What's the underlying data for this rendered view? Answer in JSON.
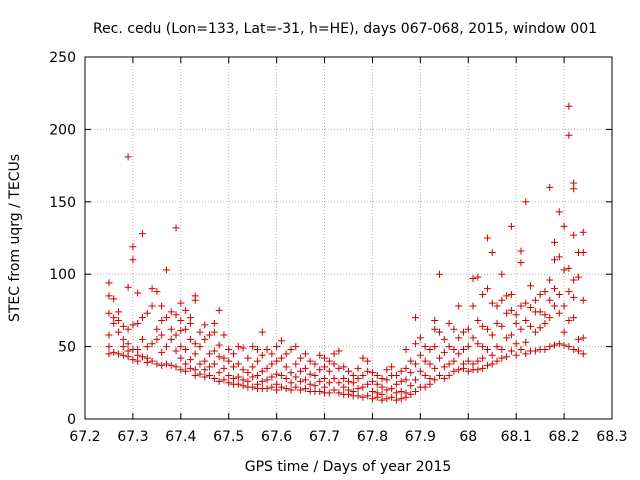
{
  "chart_data": {
    "type": "scatter",
    "title": "Rec. cedu (Lon=133, Lat=-31, h=HE), days 067-068, 2015, window 001",
    "xlabel": "GPS time / Days of year 2015",
    "ylabel": "STEC from uqrg / TECUs",
    "xlim": [
      67.2,
      68.3
    ],
    "ylim": [
      0,
      250
    ],
    "xticks": [
      "67.2",
      "67.3",
      "67.4",
      "67.5",
      "67.6",
      "67.7",
      "67.8",
      "67.9",
      "68",
      "68.1",
      "68.2",
      "68.3"
    ],
    "yticks": [
      "0",
      "50",
      "100",
      "150",
      "200",
      "250"
    ],
    "grid": true,
    "marker": "+",
    "color": "#cc0000",
    "points": [
      [
        67.25,
        94
      ],
      [
        67.25,
        85
      ],
      [
        67.25,
        73
      ],
      [
        67.25,
        58
      ],
      [
        67.25,
        50
      ],
      [
        67.25,
        45
      ],
      [
        67.26,
        83
      ],
      [
        67.26,
        70
      ],
      [
        67.26,
        66
      ],
      [
        67.26,
        46
      ],
      [
        67.27,
        74
      ],
      [
        67.27,
        68
      ],
      [
        67.27,
        60
      ],
      [
        67.27,
        45
      ],
      [
        67.28,
        64
      ],
      [
        67.28,
        55
      ],
      [
        67.28,
        50
      ],
      [
        67.28,
        44
      ],
      [
        67.29,
        181
      ],
      [
        67.29,
        91
      ],
      [
        67.29,
        62
      ],
      [
        67.29,
        52
      ],
      [
        67.29,
        47
      ],
      [
        67.29,
        43
      ],
      [
        67.3,
        119
      ],
      [
        67.3,
        110
      ],
      [
        67.3,
        65
      ],
      [
        67.3,
        48
      ],
      [
        67.3,
        41
      ],
      [
        67.31,
        87
      ],
      [
        67.31,
        66
      ],
      [
        67.31,
        48
      ],
      [
        67.31,
        44
      ],
      [
        67.31,
        40
      ],
      [
        67.32,
        128
      ],
      [
        67.32,
        70
      ],
      [
        67.32,
        55
      ],
      [
        67.32,
        43
      ],
      [
        67.33,
        73
      ],
      [
        67.33,
        50
      ],
      [
        67.33,
        42
      ],
      [
        67.33,
        39
      ],
      [
        67.34,
        90
      ],
      [
        67.34,
        78
      ],
      [
        67.34,
        52
      ],
      [
        67.34,
        40
      ],
      [
        67.35,
        88
      ],
      [
        67.35,
        62
      ],
      [
        67.35,
        55
      ],
      [
        67.35,
        38
      ],
      [
        67.36,
        78
      ],
      [
        67.36,
        68
      ],
      [
        67.36,
        58
      ],
      [
        67.36,
        46
      ],
      [
        67.36,
        37
      ],
      [
        67.37,
        103
      ],
      [
        67.37,
        70
      ],
      [
        67.37,
        50
      ],
      [
        67.37,
        38
      ],
      [
        67.38,
        74
      ],
      [
        67.38,
        62
      ],
      [
        67.38,
        55
      ],
      [
        67.38,
        37
      ],
      [
        67.39,
        132
      ],
      [
        67.39,
        72
      ],
      [
        67.39,
        58
      ],
      [
        67.39,
        47
      ],
      [
        67.39,
        36
      ],
      [
        67.4,
        80
      ],
      [
        67.4,
        68
      ],
      [
        67.4,
        61
      ],
      [
        67.4,
        50
      ],
      [
        67.4,
        42
      ],
      [
        67.4,
        34
      ],
      [
        67.41,
        75
      ],
      [
        67.41,
        62
      ],
      [
        67.41,
        48
      ],
      [
        67.41,
        38
      ],
      [
        67.41,
        33
      ],
      [
        67.42,
        70
      ],
      [
        67.42,
        66
      ],
      [
        67.42,
        55
      ],
      [
        67.42,
        41
      ],
      [
        67.42,
        35
      ],
      [
        67.43,
        85
      ],
      [
        67.43,
        82
      ],
      [
        67.43,
        52
      ],
      [
        67.43,
        45
      ],
      [
        67.43,
        34
      ],
      [
        67.43,
        30
      ],
      [
        67.44,
        60
      ],
      [
        67.44,
        50
      ],
      [
        67.44,
        38
      ],
      [
        67.44,
        31
      ],
      [
        67.45,
        65
      ],
      [
        67.45,
        55
      ],
      [
        67.45,
        40
      ],
      [
        67.45,
        34
      ],
      [
        67.45,
        29
      ],
      [
        67.46,
        58
      ],
      [
        67.46,
        45
      ],
      [
        67.46,
        36
      ],
      [
        67.46,
        30
      ],
      [
        67.47,
        66
      ],
      [
        67.47,
        60
      ],
      [
        67.47,
        47
      ],
      [
        67.47,
        38
      ],
      [
        67.47,
        28
      ],
      [
        67.48,
        75
      ],
      [
        67.48,
        51
      ],
      [
        67.48,
        43
      ],
      [
        67.48,
        32
      ],
      [
        67.48,
        26
      ],
      [
        67.49,
        58
      ],
      [
        67.49,
        42
      ],
      [
        67.49,
        35
      ],
      [
        67.49,
        27
      ],
      [
        67.5,
        48
      ],
      [
        67.5,
        40
      ],
      [
        67.5,
        30
      ],
      [
        67.5,
        25
      ],
      [
        67.51,
        45
      ],
      [
        67.51,
        36
      ],
      [
        67.51,
        28
      ],
      [
        67.51,
        24
      ],
      [
        67.52,
        50
      ],
      [
        67.52,
        38
      ],
      [
        67.52,
        29
      ],
      [
        67.52,
        24
      ],
      [
        67.53,
        49
      ],
      [
        67.53,
        34
      ],
      [
        67.53,
        27
      ],
      [
        67.53,
        23
      ],
      [
        67.54,
        42
      ],
      [
        67.54,
        32
      ],
      [
        67.54,
        26
      ],
      [
        67.54,
        22
      ],
      [
        67.55,
        50
      ],
      [
        67.55,
        36
      ],
      [
        67.55,
        29
      ],
      [
        67.55,
        22
      ],
      [
        67.56,
        48
      ],
      [
        67.56,
        40
      ],
      [
        67.56,
        30
      ],
      [
        67.56,
        24
      ],
      [
        67.56,
        21
      ],
      [
        67.57,
        60
      ],
      [
        67.57,
        44
      ],
      [
        67.57,
        33
      ],
      [
        67.57,
        26
      ],
      [
        67.57,
        21
      ],
      [
        67.58,
        48
      ],
      [
        67.58,
        35
      ],
      [
        67.58,
        27
      ],
      [
        67.58,
        21
      ],
      [
        67.59,
        45
      ],
      [
        67.59,
        38
      ],
      [
        67.59,
        29
      ],
      [
        67.59,
        22
      ],
      [
        67.6,
        50
      ],
      [
        67.6,
        40
      ],
      [
        67.6,
        31
      ],
      [
        67.6,
        24
      ],
      [
        67.6,
        20
      ],
      [
        67.61,
        54
      ],
      [
        67.61,
        42
      ],
      [
        67.61,
        30
      ],
      [
        67.61,
        22
      ],
      [
        67.62,
        45
      ],
      [
        67.62,
        36
      ],
      [
        67.62,
        28
      ],
      [
        67.62,
        21
      ],
      [
        67.63,
        48
      ],
      [
        67.63,
        32
      ],
      [
        67.63,
        25
      ],
      [
        67.63,
        20
      ],
      [
        67.64,
        50
      ],
      [
        67.64,
        38
      ],
      [
        67.64,
        29
      ],
      [
        67.64,
        22
      ],
      [
        67.65,
        42
      ],
      [
        67.65,
        33
      ],
      [
        67.65,
        26
      ],
      [
        67.65,
        20
      ],
      [
        67.66,
        45
      ],
      [
        67.66,
        35
      ],
      [
        67.66,
        27
      ],
      [
        67.66,
        21
      ],
      [
        67.67,
        40
      ],
      [
        67.67,
        31
      ],
      [
        67.67,
        24
      ],
      [
        67.67,
        19
      ],
      [
        67.68,
        38
      ],
      [
        67.68,
        30
      ],
      [
        67.68,
        23
      ],
      [
        67.68,
        19
      ],
      [
        67.69,
        44
      ],
      [
        67.69,
        34
      ],
      [
        67.69,
        26
      ],
      [
        67.69,
        19
      ],
      [
        67.7,
        42
      ],
      [
        67.7,
        36
      ],
      [
        67.7,
        28
      ],
      [
        67.7,
        22
      ],
      [
        67.7,
        18
      ],
      [
        67.71,
        40
      ],
      [
        67.71,
        33
      ],
      [
        67.71,
        25
      ],
      [
        67.71,
        18
      ],
      [
        67.72,
        45
      ],
      [
        67.72,
        38
      ],
      [
        67.72,
        28
      ],
      [
        67.72,
        20
      ],
      [
        67.73,
        47
      ],
      [
        67.73,
        35
      ],
      [
        67.73,
        25
      ],
      [
        67.73,
        18
      ],
      [
        67.74,
        36
      ],
      [
        67.74,
        28
      ],
      [
        67.74,
        22
      ],
      [
        67.74,
        17
      ],
      [
        67.75,
        33
      ],
      [
        67.75,
        26
      ],
      [
        67.75,
        20
      ],
      [
        67.75,
        17
      ],
      [
        67.76,
        30
      ],
      [
        67.76,
        25
      ],
      [
        67.76,
        19
      ],
      [
        67.76,
        16
      ],
      [
        67.77,
        35
      ],
      [
        67.77,
        28
      ],
      [
        67.77,
        21
      ],
      [
        67.77,
        16
      ],
      [
        67.78,
        42
      ],
      [
        67.78,
        30
      ],
      [
        67.78,
        22
      ],
      [
        67.78,
        15
      ],
      [
        67.79,
        40
      ],
      [
        67.79,
        33
      ],
      [
        67.79,
        24
      ],
      [
        67.79,
        16
      ],
      [
        67.8,
        32
      ],
      [
        67.8,
        26
      ],
      [
        67.8,
        19
      ],
      [
        67.8,
        14
      ],
      [
        67.81,
        30
      ],
      [
        67.81,
        24
      ],
      [
        67.81,
        18
      ],
      [
        67.81,
        15
      ],
      [
        67.82,
        28
      ],
      [
        67.82,
        22
      ],
      [
        67.82,
        17
      ],
      [
        67.82,
        13
      ],
      [
        67.83,
        34
      ],
      [
        67.83,
        27
      ],
      [
        67.83,
        20
      ],
      [
        67.83,
        14
      ],
      [
        67.84,
        36
      ],
      [
        67.84,
        30
      ],
      [
        67.84,
        21
      ],
      [
        67.84,
        15
      ],
      [
        67.85,
        30
      ],
      [
        67.85,
        24
      ],
      [
        67.85,
        18
      ],
      [
        67.85,
        13
      ],
      [
        67.86,
        33
      ],
      [
        67.86,
        26
      ],
      [
        67.86,
        19
      ],
      [
        67.86,
        14
      ],
      [
        67.87,
        48
      ],
      [
        67.87,
        35
      ],
      [
        67.87,
        27
      ],
      [
        67.87,
        18
      ],
      [
        67.87,
        15
      ],
      [
        67.88,
        40
      ],
      [
        67.88,
        32
      ],
      [
        67.88,
        23
      ],
      [
        67.88,
        17
      ],
      [
        67.89,
        70
      ],
      [
        67.89,
        52
      ],
      [
        67.89,
        38
      ],
      [
        67.89,
        27
      ],
      [
        67.89,
        19
      ],
      [
        67.9,
        56
      ],
      [
        67.9,
        44
      ],
      [
        67.9,
        33
      ],
      [
        67.9,
        22
      ],
      [
        67.91,
        50
      ],
      [
        67.91,
        40
      ],
      [
        67.91,
        30
      ],
      [
        67.91,
        22
      ],
      [
        67.92,
        48
      ],
      [
        67.92,
        38
      ],
      [
        67.92,
        28
      ],
      [
        67.92,
        24
      ],
      [
        67.93,
        68
      ],
      [
        67.93,
        62
      ],
      [
        67.93,
        50
      ],
      [
        67.93,
        35
      ],
      [
        67.93,
        27
      ],
      [
        67.94,
        100
      ],
      [
        67.94,
        60
      ],
      [
        67.94,
        42
      ],
      [
        67.94,
        30
      ],
      [
        67.95,
        55
      ],
      [
        67.95,
        46
      ],
      [
        67.95,
        36
      ],
      [
        67.95,
        28
      ],
      [
        67.96,
        66
      ],
      [
        67.96,
        50
      ],
      [
        67.96,
        38
      ],
      [
        67.96,
        30
      ],
      [
        67.97,
        62
      ],
      [
        67.97,
        48
      ],
      [
        67.97,
        40
      ],
      [
        67.97,
        33
      ],
      [
        67.98,
        78
      ],
      [
        67.98,
        56
      ],
      [
        67.98,
        45
      ],
      [
        67.98,
        34
      ],
      [
        67.99,
        60
      ],
      [
        67.99,
        48
      ],
      [
        67.99,
        38
      ],
      [
        67.99,
        35
      ],
      [
        68.0,
        62
      ],
      [
        68.0,
        50
      ],
      [
        68.0,
        40
      ],
      [
        68.0,
        33
      ],
      [
        68.01,
        97
      ],
      [
        68.01,
        78
      ],
      [
        68.01,
        56
      ],
      [
        68.01,
        38
      ],
      [
        68.01,
        34
      ],
      [
        68.02,
        98
      ],
      [
        68.02,
        68
      ],
      [
        68.02,
        52
      ],
      [
        68.02,
        40
      ],
      [
        68.02,
        34
      ],
      [
        68.03,
        86
      ],
      [
        68.03,
        64
      ],
      [
        68.03,
        50
      ],
      [
        68.03,
        42
      ],
      [
        68.03,
        35
      ],
      [
        68.04,
        125
      ],
      [
        68.04,
        90
      ],
      [
        68.04,
        62
      ],
      [
        68.04,
        48
      ],
      [
        68.04,
        37
      ],
      [
        68.05,
        115
      ],
      [
        68.05,
        80
      ],
      [
        68.05,
        58
      ],
      [
        68.05,
        44
      ],
      [
        68.05,
        38
      ],
      [
        68.06,
        78
      ],
      [
        68.06,
        66
      ],
      [
        68.06,
        50
      ],
      [
        68.06,
        40
      ],
      [
        68.07,
        100
      ],
      [
        68.07,
        82
      ],
      [
        68.07,
        64
      ],
      [
        68.07,
        48
      ],
      [
        68.07,
        42
      ],
      [
        68.08,
        85
      ],
      [
        68.08,
        73
      ],
      [
        68.08,
        56
      ],
      [
        68.08,
        43
      ],
      [
        68.09,
        133
      ],
      [
        68.09,
        86
      ],
      [
        68.09,
        75
      ],
      [
        68.09,
        58
      ],
      [
        68.09,
        47
      ],
      [
        68.1,
        72
      ],
      [
        68.1,
        66
      ],
      [
        68.1,
        52
      ],
      [
        68.1,
        44
      ],
      [
        68.11,
        116
      ],
      [
        68.11,
        108
      ],
      [
        68.11,
        78
      ],
      [
        68.11,
        62
      ],
      [
        68.11,
        48
      ],
      [
        68.12,
        150
      ],
      [
        68.12,
        80
      ],
      [
        68.12,
        68
      ],
      [
        68.12,
        53
      ],
      [
        68.12,
        45
      ],
      [
        68.13,
        92
      ],
      [
        68.13,
        77
      ],
      [
        68.13,
        64
      ],
      [
        68.13,
        47
      ],
      [
        68.14,
        82
      ],
      [
        68.14,
        74
      ],
      [
        68.14,
        60
      ],
      [
        68.14,
        47
      ],
      [
        68.15,
        86
      ],
      [
        68.15,
        74
      ],
      [
        68.15,
        63
      ],
      [
        68.15,
        48
      ],
      [
        68.16,
        88
      ],
      [
        68.16,
        72
      ],
      [
        68.16,
        66
      ],
      [
        68.16,
        48
      ],
      [
        68.17,
        160
      ],
      [
        68.17,
        96
      ],
      [
        68.17,
        82
      ],
      [
        68.17,
        70
      ],
      [
        68.17,
        50
      ],
      [
        68.18,
        122
      ],
      [
        68.18,
        110
      ],
      [
        68.18,
        90
      ],
      [
        68.18,
        78
      ],
      [
        68.18,
        51
      ],
      [
        68.19,
        143
      ],
      [
        68.19,
        112
      ],
      [
        68.19,
        86
      ],
      [
        68.19,
        73
      ],
      [
        68.19,
        52
      ],
      [
        68.2,
        133
      ],
      [
        68.2,
        103
      ],
      [
        68.2,
        78
      ],
      [
        68.2,
        60
      ],
      [
        68.2,
        51
      ],
      [
        68.21,
        216
      ],
      [
        68.21,
        196
      ],
      [
        68.21,
        104
      ],
      [
        68.21,
        88
      ],
      [
        68.21,
        68
      ],
      [
        68.21,
        50
      ],
      [
        68.22,
        163
      ],
      [
        68.22,
        159
      ],
      [
        68.22,
        127
      ],
      [
        68.22,
        96
      ],
      [
        68.22,
        84
      ],
      [
        68.22,
        70
      ],
      [
        68.22,
        48
      ],
      [
        68.23,
        115
      ],
      [
        68.23,
        98
      ],
      [
        68.23,
        55
      ],
      [
        68.23,
        47
      ],
      [
        68.24,
        129
      ],
      [
        68.24,
        115
      ],
      [
        68.24,
        82
      ],
      [
        68.24,
        56
      ],
      [
        68.24,
        45
      ]
    ]
  }
}
